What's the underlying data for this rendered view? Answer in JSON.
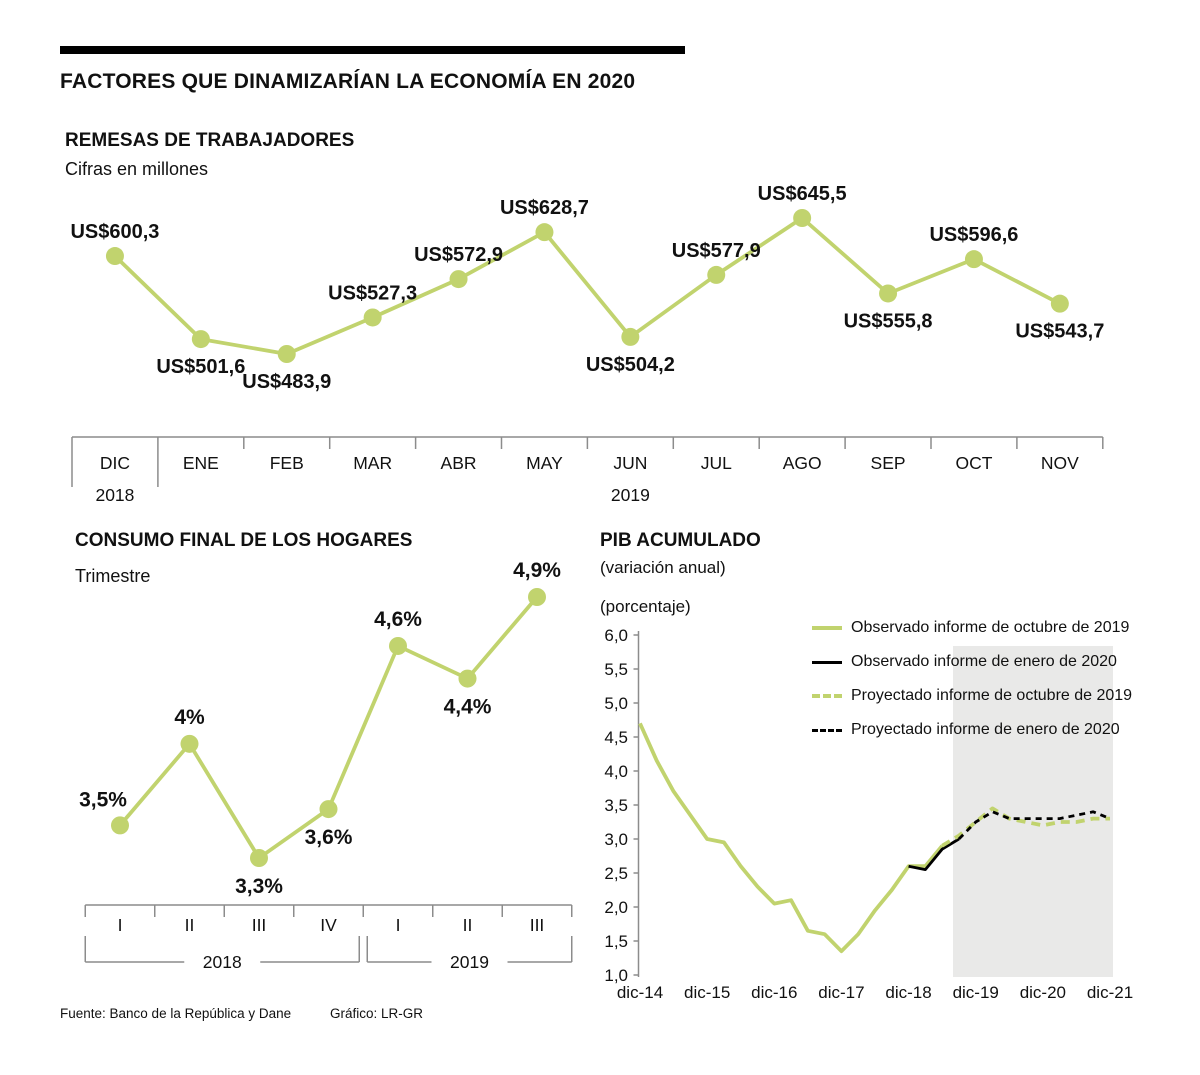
{
  "page": {
    "title": "FACTORES QUE DINAMIZARÍAN LA ECONOMÍA EN 2020",
    "source": "Fuente: Banco de la República y Dane",
    "credit": "Gráfico: LR-GR"
  },
  "colors": {
    "green": "#c1d36e",
    "black": "#000000",
    "shade": "#e9e9e8",
    "axis": "#8c8c8c"
  },
  "chart_data": [
    {
      "id": "remesas",
      "type": "line",
      "title": "REMESAS DE TRABAJADORES",
      "subtitle": "Cifras en millones",
      "categories": [
        "DIC",
        "ENE",
        "FEB",
        "MAR",
        "ABR",
        "MAY",
        "JUN",
        "JUL",
        "AGO",
        "SEP",
        "OCT",
        "NOV"
      ],
      "values": [
        600.3,
        501.6,
        483.9,
        527.3,
        572.9,
        628.7,
        504.2,
        577.9,
        645.5,
        555.8,
        596.6,
        543.7
      ],
      "point_labels": [
        "US$600,3",
        "US$501,6",
        "US$483,9",
        "US$527,3",
        "US$572,9",
        "US$628,7",
        "US$504,2",
        "US$577,9",
        "US$645,5",
        "US$555,8",
        "US$596,6",
        "US$543,7"
      ],
      "label_positions": [
        "above",
        "below",
        "below",
        "above",
        "above",
        "above",
        "below",
        "above",
        "above",
        "below",
        "above",
        "below"
      ],
      "year_groups": [
        {
          "label": "2018",
          "from": 0,
          "to": 0
        },
        {
          "label": "2019",
          "from": 1,
          "to": 11
        }
      ],
      "line_color": "#c1d36e"
    },
    {
      "id": "consumo",
      "type": "line",
      "title": "CONSUMO FINAL DE LOS HOGARES",
      "subtitle": "Trimestre",
      "categories": [
        "I",
        "II",
        "III",
        "IV",
        "I",
        "II",
        "III"
      ],
      "values": [
        3.5,
        4,
        3.3,
        3.6,
        4.6,
        4.4,
        4.9
      ],
      "point_labels": [
        "3,5%",
        "4%",
        "3,3%",
        "3,6%",
        "4,6%",
        "4,4%",
        "4,9%"
      ],
      "label_positions": [
        "left",
        "above",
        "below",
        "below",
        "above",
        "below",
        "above"
      ],
      "year_groups": [
        {
          "label": "2018",
          "from": 0,
          "to": 3
        },
        {
          "label": "2019",
          "from": 4,
          "to": 6
        }
      ],
      "line_color": "#c1d36e"
    },
    {
      "id": "pib",
      "type": "line",
      "title": "PIB ACUMULADO",
      "subtitle": "(variación anual)",
      "axis_unit": "(porcentaje)",
      "ylim": [
        1.0,
        6.0
      ],
      "ytick_labels": [
        "6,0",
        "5,5",
        "5,0",
        "4,5",
        "4,0",
        "3,5",
        "3,0",
        "2,5",
        "2,0",
        "1,5",
        "1,0"
      ],
      "x_tick_labels": [
        "dic-14",
        "dic-15",
        "dic-16",
        "dic-17",
        "dic-18",
        "dic-19",
        "dic-20",
        "dic-21"
      ],
      "quarters_per_x_tick": 4,
      "shaded_region": {
        "from_label": "sep-19",
        "to_label": "dic-21",
        "meaning": "periodo proyectado"
      },
      "legend_position": "top-right",
      "series": [
        {
          "name": "Observado informe de octubre de 2019",
          "color": "#c1d36e",
          "style": "solid",
          "start_quarter": 0,
          "values": [
            4.7,
            4.15,
            3.7,
            3.35,
            3.0,
            2.95,
            2.6,
            2.3,
            2.05,
            2.1,
            1.65,
            1.6,
            1.35,
            1.6,
            1.95,
            2.25,
            2.6,
            2.6,
            2.9
          ]
        },
        {
          "name": "Observado informe de enero de 2020",
          "color": "#000000",
          "style": "solid",
          "start_quarter": 16,
          "values": [
            2.6,
            2.55,
            2.85,
            3.0
          ]
        },
        {
          "name": "Proyectado informe de octubre de 2019",
          "color": "#c1d36e",
          "style": "dashed",
          "start_quarter": 18,
          "values": [
            2.9,
            3.05,
            3.25,
            3.45,
            3.3,
            3.25,
            3.2,
            3.25,
            3.25,
            3.3,
            3.3
          ]
        },
        {
          "name": "Proyectado informe de enero de 2020",
          "color": "#000000",
          "style": "dashed",
          "start_quarter": 19,
          "values": [
            3.0,
            3.25,
            3.4,
            3.3,
            3.3,
            3.3,
            3.3,
            3.35,
            3.4,
            3.3
          ]
        }
      ]
    }
  ]
}
